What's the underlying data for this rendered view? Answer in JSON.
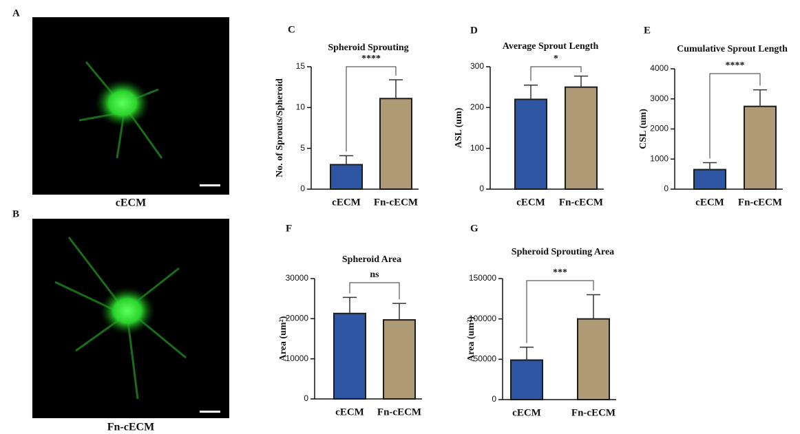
{
  "images": [
    {
      "label": "A",
      "caption": "cECM"
    },
    {
      "label": "B",
      "caption": "Fn-cECM"
    }
  ],
  "chart_data": [
    {
      "type": "bar",
      "label": "C",
      "title": "Spheroid Sprouting",
      "y_label": "No. of Sprouts/Spheroid",
      "categories": [
        "cECM",
        "Fn-cECM"
      ],
      "values": [
        3,
        11.1
      ],
      "errors": [
        1.1,
        2.3
      ],
      "colors": [
        "#2e55a2",
        "#af9a76"
      ],
      "ylim": [
        0,
        15
      ],
      "yticks": [
        0,
        5,
        10,
        15
      ],
      "significance": "****"
    },
    {
      "type": "bar",
      "label": "D",
      "title": "Average Sprout Length",
      "y_label": "ASL (um)",
      "categories": [
        "cECM",
        "Fn-cECM"
      ],
      "values": [
        220,
        250
      ],
      "errors": [
        35,
        27
      ],
      "colors": [
        "#2e55a2",
        "#af9a76"
      ],
      "ylim": [
        0,
        300
      ],
      "yticks": [
        0,
        100,
        200,
        300
      ],
      "significance": "*"
    },
    {
      "type": "bar",
      "label": "E",
      "title": "Cumulative Sprout Length",
      "y_label": "CSL (um)",
      "categories": [
        "cECM",
        "Fn-cECM"
      ],
      "values": [
        650,
        2750
      ],
      "errors": [
        230,
        550
      ],
      "colors": [
        "#2e55a2",
        "#af9a76"
      ],
      "ylim": [
        0,
        4000
      ],
      "yticks": [
        0,
        1000,
        2000,
        3000,
        4000
      ],
      "significance": "****"
    },
    {
      "type": "bar",
      "label": "F",
      "title": "Spheroid Area",
      "y_label": "Area (um²)",
      "categories": [
        "cECM",
        "Fn-cECM"
      ],
      "values": [
        21300,
        19700
      ],
      "errors": [
        4000,
        4100
      ],
      "colors": [
        "#2e55a2",
        "#af9a76"
      ],
      "ylim": [
        0,
        30000
      ],
      "yticks": [
        0,
        10000,
        20000,
        30000
      ],
      "significance": "ns"
    },
    {
      "type": "bar",
      "label": "G",
      "title": "Spheroid Sprouting Area",
      "y_label": "Area (um²)",
      "categories": [
        "cECM",
        "Fn-cECM"
      ],
      "values": [
        49000,
        100000
      ],
      "errors": [
        16000,
        30000
      ],
      "colors": [
        "#2e55a2",
        "#af9a76"
      ],
      "ylim": [
        0,
        150000
      ],
      "yticks": [
        0,
        50000,
        100000,
        150000
      ],
      "significance": "***"
    }
  ]
}
